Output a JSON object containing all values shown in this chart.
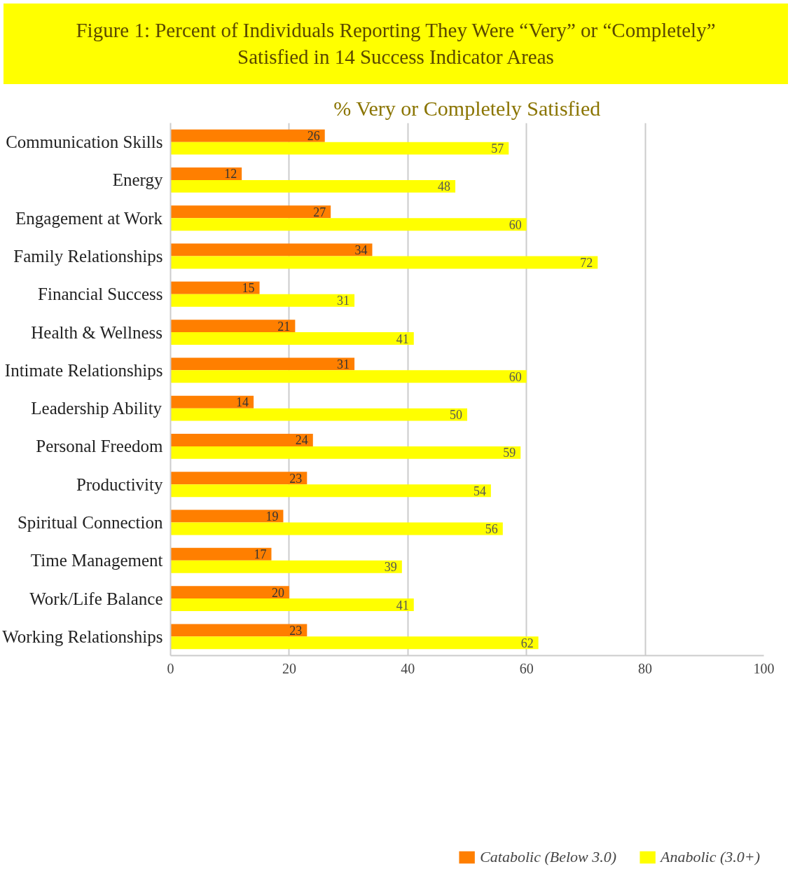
{
  "chart_data": {
    "type": "bar",
    "orientation": "horizontal",
    "title": "Figure 1:  Percent of Individuals Reporting They Were “Very” or “Completely” Satisfied in 14 Success Indicator Areas",
    "subtitle": "% Very or Completely Satisfied",
    "categories": [
      "Communication Skills",
      "Energy",
      "Engagement at Work",
      "Family Relationships",
      "Financial Success",
      "Health & Wellness",
      "Intimate Relationships",
      "Leadership Ability",
      "Personal Freedom",
      "Productivity",
      "Spiritual Connection",
      "Time Management",
      "Work/Life Balance",
      "Working Relationships"
    ],
    "series": [
      {
        "name": "Catabolic (Below 3.0)",
        "color": "#ff7f00",
        "values": [
          26,
          12,
          27,
          34,
          15,
          21,
          31,
          14,
          24,
          23,
          19,
          17,
          20,
          23
        ]
      },
      {
        "name": "Anabolic (3.0+)",
        "color": "#ffff00",
        "values": [
          57,
          48,
          60,
          72,
          31,
          41,
          60,
          50,
          59,
          54,
          56,
          39,
          41,
          62
        ]
      }
    ],
    "xlim": [
      0,
      100
    ],
    "xticks": [
      0,
      20,
      40,
      60,
      80,
      100
    ],
    "grid": "x",
    "legend": "bottom",
    "data_labels": true
  }
}
